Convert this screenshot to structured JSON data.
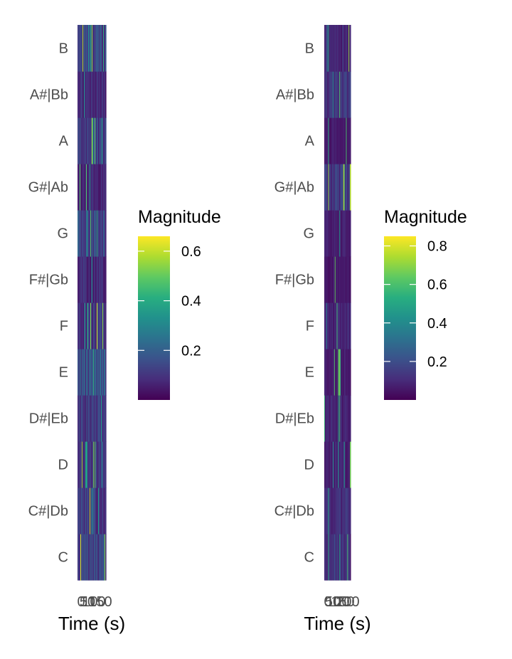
{
  "chart_data": [
    {
      "type": "heatmap",
      "title": "",
      "xlabel": "Time (s)",
      "ylabel": "",
      "x_tick_labels": [
        "0",
        "50",
        "100",
        "150"
      ],
      "x_ticks": [
        0,
        50,
        100,
        150
      ],
      "x_range": [
        0,
        160
      ],
      "y_categories": [
        "C",
        "C#|Db",
        "D",
        "D#|Eb",
        "E",
        "F",
        "F#|Gb",
        "G",
        "G#|Ab",
        "A",
        "A#|Bb",
        "B"
      ],
      "legend": {
        "title": "Magnitude",
        "tick_labels": [
          "0.2",
          "0.4",
          "0.6"
        ],
        "ticks": [
          0.2,
          0.4,
          0.6
        ],
        "range": [
          0.0,
          0.66
        ],
        "placement": "right",
        "colormap": "viridis"
      },
      "n_frames": 40,
      "seed": 7,
      "values_by_pitch": {
        "C": 0.13,
        "C#|Db": 0.12,
        "D": 0.1,
        "D#|Eb": 0.11,
        "E": 0.17,
        "F": 0.11,
        "F#|Gb": 0.08,
        "G": 0.14,
        "G#|Ab": 0.07,
        "A": 0.12,
        "A#|Bb": 0.08,
        "B": 0.14
      },
      "grid": false
    },
    {
      "type": "heatmap",
      "title": "",
      "xlabel": "Time (s)",
      "ylabel": "",
      "x_tick_labels": [
        "0",
        "50",
        "100",
        "150",
        "200"
      ],
      "x_ticks": [
        0,
        50,
        100,
        150,
        200
      ],
      "x_range": [
        0,
        215
      ],
      "y_categories": [
        "C",
        "C#|Db",
        "D",
        "D#|Eb",
        "E",
        "F",
        "F#|Gb",
        "G",
        "G#|Ab",
        "A",
        "A#|Bb",
        "B"
      ],
      "legend": {
        "title": "Magnitude",
        "tick_labels": [
          "0.2",
          "0.4",
          "0.6",
          "0.8"
        ],
        "ticks": [
          0.2,
          0.4,
          0.6,
          0.8
        ],
        "range": [
          0.0,
          0.85
        ],
        "placement": "right",
        "colormap": "viridis"
      },
      "n_frames": 40,
      "seed": 19,
      "values_by_pitch": {
        "C": 0.12,
        "C#|Db": 0.11,
        "D": 0.08,
        "D#|Eb": 0.09,
        "E": 0.06,
        "F": 0.09,
        "F#|Gb": 0.06,
        "G": 0.07,
        "G#|Ab": 0.14,
        "A": 0.06,
        "A#|Bb": 0.13,
        "B": 0.09
      },
      "grid": false
    }
  ]
}
